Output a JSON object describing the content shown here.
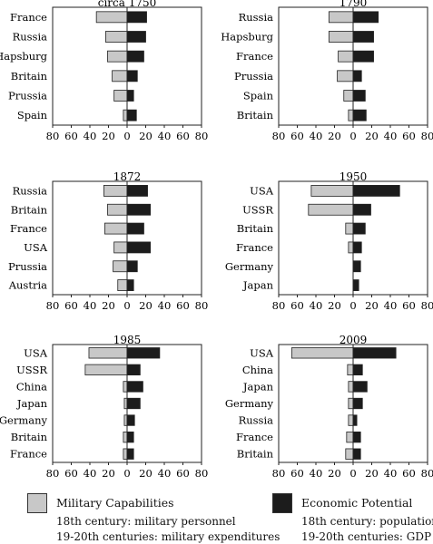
{
  "colors": {
    "military": "#c8c8c8",
    "economic": "#1c1c1c",
    "axis": "#222222"
  },
  "chart_data": [
    {
      "type": "bar",
      "title": "circa 1750",
      "categories": [
        "France",
        "Russia",
        "Hapsburg",
        "Britain",
        "Prussia",
        "Spain"
      ],
      "series": [
        {
          "name": "Military Capabilities",
          "values": [
            -33,
            -23,
            -21,
            -16,
            -14,
            -4
          ]
        },
        {
          "name": "Economic Potential",
          "values": [
            21,
            20,
            18,
            11,
            7,
            10
          ]
        }
      ],
      "xlim": [
        -80,
        80
      ],
      "ticks": [
        "80",
        "60",
        "40",
        "20",
        "0",
        "20",
        "40",
        "60",
        "80"
      ]
    },
    {
      "type": "bar",
      "title": "1790",
      "categories": [
        "Russia",
        "Hapsburg",
        "France",
        "Prussia",
        "Spain",
        "Britain"
      ],
      "series": [
        {
          "name": "Military Capabilities",
          "values": [
            -26,
            -26,
            -16,
            -17,
            -10,
            -5
          ]
        },
        {
          "name": "Economic Potential",
          "values": [
            27,
            22,
            22,
            9,
            13,
            14
          ]
        }
      ],
      "xlim": [
        -80,
        80
      ],
      "ticks": [
        "80",
        "60",
        "40",
        "20",
        "0",
        "20",
        "40",
        "60",
        "80"
      ]
    },
    {
      "type": "bar",
      "title": "1872",
      "categories": [
        "Russia",
        "Britain",
        "France",
        "USA",
        "Prussia",
        "Austria"
      ],
      "series": [
        {
          "name": "Military Capabilities",
          "values": [
            -25,
            -21,
            -24,
            -14,
            -15,
            -10
          ]
        },
        {
          "name": "Economic Potential",
          "values": [
            22,
            25,
            18,
            25,
            11,
            7
          ]
        }
      ],
      "xlim": [
        -80,
        80
      ],
      "ticks": [
        "80",
        "60",
        "40",
        "20",
        "0",
        "20",
        "40",
        "60",
        "80"
      ]
    },
    {
      "type": "bar",
      "title": "1950",
      "categories": [
        "USA",
        "USSR",
        "Britain",
        "France",
        "Germany",
        "Japan"
      ],
      "series": [
        {
          "name": "Military Capabilities",
          "values": [
            -45,
            -48,
            -8,
            -5,
            0,
            0
          ]
        },
        {
          "name": "Economic Potential",
          "values": [
            50,
            19,
            13,
            9,
            8,
            6
          ]
        }
      ],
      "xlim": [
        -80,
        80
      ],
      "ticks": [
        "80",
        "60",
        "40",
        "20",
        "0",
        "20",
        "40",
        "60",
        "80"
      ]
    },
    {
      "type": "bar",
      "title": "1985",
      "categories": [
        "USA",
        "USSR",
        "China",
        "Japan",
        "Germany",
        "Britain",
        "France"
      ],
      "series": [
        {
          "name": "Military Capabilities",
          "values": [
            -41,
            -45,
            -4,
            -3,
            -3,
            -4,
            -4
          ]
        },
        {
          "name": "Economic Potential",
          "values": [
            35,
            14,
            17,
            14,
            8,
            7,
            7
          ]
        }
      ],
      "xlim": [
        -80,
        80
      ],
      "ticks": [
        "80",
        "60",
        "40",
        "20",
        "0",
        "20",
        "40",
        "60",
        "80"
      ]
    },
    {
      "type": "bar",
      "title": "2009",
      "categories": [
        "USA",
        "China",
        "Japan",
        "Germany",
        "Russia",
        "France",
        "Britain"
      ],
      "series": [
        {
          "name": "Military Capabilities",
          "values": [
            -66,
            -6,
            -5,
            -5,
            -5,
            -7,
            -8
          ]
        },
        {
          "name": "Economic Potential",
          "values": [
            46,
            10,
            15,
            10,
            4,
            8,
            8
          ]
        }
      ],
      "xlim": [
        -80,
        80
      ],
      "ticks": [
        "80",
        "60",
        "40",
        "20",
        "0",
        "20",
        "40",
        "60",
        "80"
      ]
    }
  ],
  "legend": {
    "military": {
      "label": "Military Capabilities",
      "note1": "18th century: military personnel",
      "note2": "19-20th centuries: military expenditures"
    },
    "economic": {
      "label": "Economic Potential",
      "note1": "18th century: population",
      "note2": "19-20th centuries: GDP"
    }
  }
}
